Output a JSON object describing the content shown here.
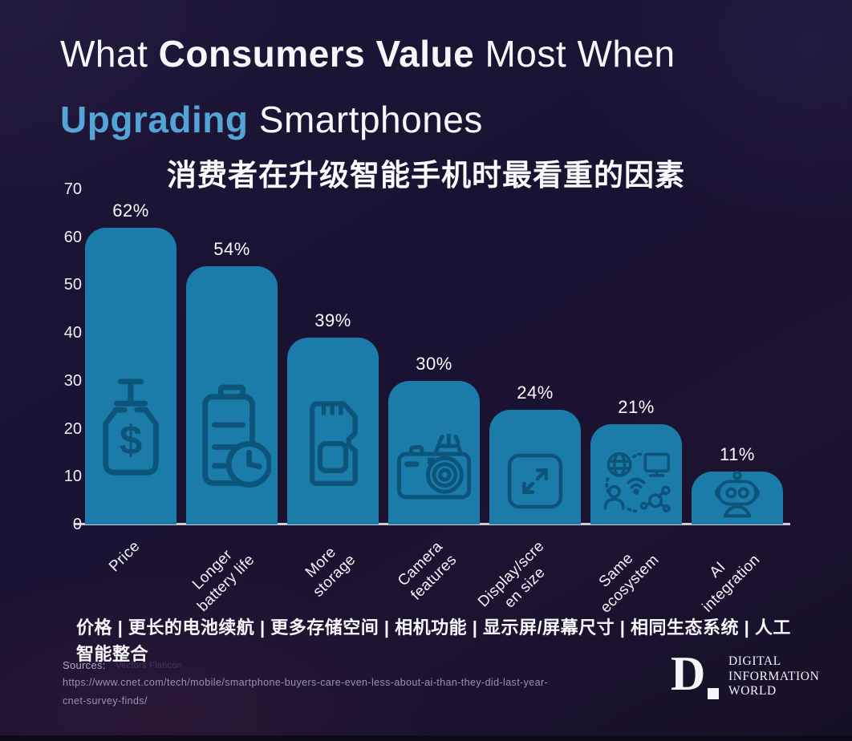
{
  "title": {
    "line1_pre": "What ",
    "line1_bold": "Consumers Value",
    "line1_post": " Most When",
    "line2_highlight": "Upgrading",
    "line2_rest": " Smartphones",
    "subtitle_zh": "消费者在升级智能手机时最看重的因素",
    "highlight_color": "#55a4d6"
  },
  "chart_data": {
    "type": "bar",
    "title": "What Consumers Value Most When Upgrading Smartphones",
    "categories": [
      "Price",
      "Longer battery life",
      "More storage",
      "Camera features",
      "Display/screen size",
      "Same ecosystem",
      "AI integration"
    ],
    "categories_display": [
      "Price",
      "Longer\nbattery life",
      "More\nstorage",
      "Camera\nfeatures",
      "Display/scre\nen size",
      "Same\necosystem",
      "AI\nintegration"
    ],
    "values": [
      62,
      54,
      39,
      30,
      24,
      21,
      11
    ],
    "value_labels": [
      "62%",
      "54%",
      "39%",
      "30%",
      "24%",
      "21%",
      "11%"
    ],
    "y_ticks": [
      0,
      10,
      20,
      30,
      40,
      50,
      60,
      70
    ],
    "ylim": [
      0,
      70
    ],
    "xlabel": "",
    "ylabel": "",
    "grid": false,
    "legend": null,
    "bar_color": "#1b7caa",
    "icon_color": "#0d547a",
    "icons": [
      "price-tag-icon",
      "battery-clock-icon",
      "sd-card-icon",
      "camera-icon",
      "expand-arrows-icon",
      "ecosystem-icon",
      "robot-icon"
    ]
  },
  "caption_zh": "价格 | 更长的电池续航 | 更多存储空间 | 相机功能 | 显示屏/屏幕尺寸 | 相同生态系统 | 人工智能整合",
  "sources": {
    "label": "Sources:",
    "credit": "Vectors Flaticon",
    "url_line1": "https://www.cnet.com/tech/mobile/smartphone-buyers-care-even-less-about-ai-than-they-did-last-year-",
    "url_line2": "cnet-survey-finds/"
  },
  "logo": {
    "letter": "D",
    "line1": "DIGITAL",
    "line2": "INFORMATION",
    "line3": "WORLD"
  }
}
